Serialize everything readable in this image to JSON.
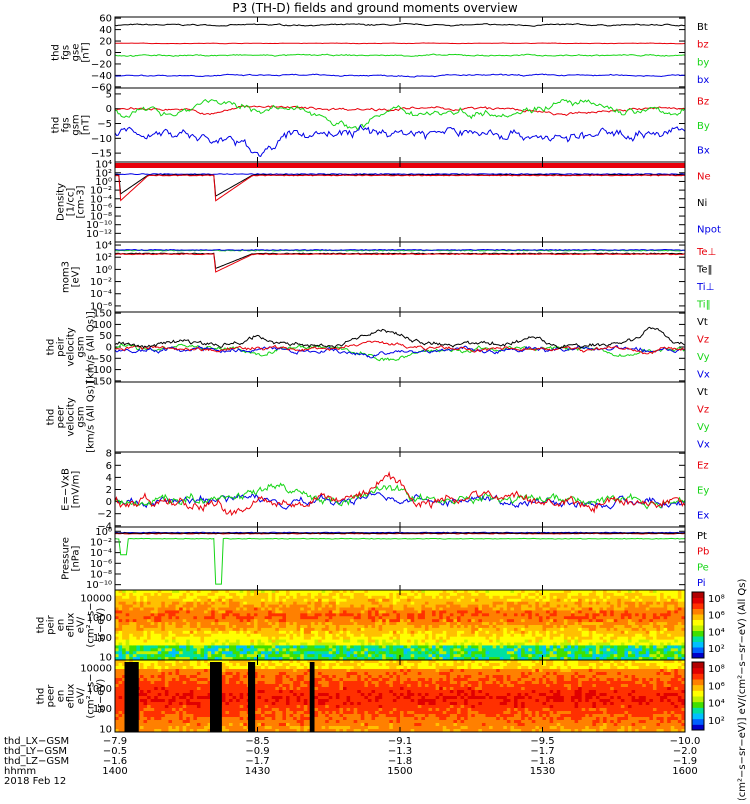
{
  "title": "P3 (TH-D) fields and ground moments overview",
  "colors": {
    "black": "#000000",
    "red": "#e8000b",
    "green": "#16d516",
    "blue": "#0000e6"
  },
  "panels": [
    {
      "id": "p1",
      "ylabel": [
        "thd",
        "fgs",
        "gse",
        "[nT]"
      ],
      "ticks": [
        "60",
        "40",
        "20",
        "0",
        "−20",
        "−40",
        "−60"
      ],
      "tick_values": [
        60,
        40,
        20,
        0,
        -20,
        -40,
        -60
      ],
      "ylim": [
        -62,
        62
      ],
      "legend": [
        {
          "label": "Bt",
          "color": "#000000"
        },
        {
          "label": "bz",
          "color": "#e8000b"
        },
        {
          "label": "by",
          "color": "#16d516"
        },
        {
          "label": "bx",
          "color": "#0000e6"
        }
      ],
      "series": [
        {
          "name": "Bt",
          "color": "#000000",
          "base": 48,
          "noise": 1.5
        },
        {
          "name": "bz",
          "color": "#e8000b",
          "base": 16,
          "noise": 0.5
        },
        {
          "name": "by",
          "color": "#16d516",
          "base": -5,
          "noise": 1.5
        },
        {
          "name": "bx",
          "color": "#0000e6",
          "base": -40,
          "noise": 1.5
        }
      ]
    },
    {
      "id": "p2",
      "ylabel": [
        "thd",
        "fgs",
        "gsm",
        "[nT]"
      ],
      "ticks": [
        "5",
        "0",
        "−5",
        "−10",
        "−15"
      ],
      "tick_values": [
        5,
        0,
        -5,
        -10,
        -15
      ],
      "ylim": [
        -18,
        7
      ],
      "legend": [
        {
          "label": "Bz",
          "color": "#e8000b"
        },
        {
          "label": "By",
          "color": "#16d516"
        },
        {
          "label": "Bx",
          "color": "#0000e6"
        }
      ],
      "series": [
        {
          "name": "Bz",
          "color": "#e8000b",
          "base": 0,
          "noise": 0.6
        },
        {
          "name": "By",
          "color": "#16d516",
          "base": -1,
          "noise": 1.5
        },
        {
          "name": "Bx",
          "color": "#0000e6",
          "base": -8,
          "noise": 2
        }
      ]
    },
    {
      "id": "p3",
      "ylabel": [
        "Density",
        "[1/cc]",
        "[cm-3]"
      ],
      "ticks": [
        "10⁴",
        "10²",
        "10⁰",
        "10⁻²",
        "10⁻⁴",
        "10⁻⁶",
        "10⁻⁸",
        "10⁻¹⁰",
        "10⁻¹²"
      ],
      "tick_values": [
        4,
        2,
        0,
        -2,
        -4,
        -6,
        -8,
        -10,
        -12
      ],
      "ylim": [
        -14,
        4.5
      ],
      "legend": [
        {
          "label": "Ne",
          "color": "#e8000b"
        },
        {
          "label": "Ni",
          "color": "#000000"
        },
        {
          "label": "Npot",
          "color": "#0000e6"
        }
      ]
    },
    {
      "id": "p4",
      "ylabel": [
        "mom3",
        "[eV]"
      ],
      "ticks": [
        "10⁴",
        "10²",
        "10⁰",
        "10⁻²",
        "10⁻⁴",
        "10⁻⁶"
      ],
      "tick_values": [
        4,
        2,
        0,
        -2,
        -4,
        -6
      ],
      "ylim": [
        -7,
        4.5
      ],
      "legend": [
        {
          "label": "Te⊥",
          "color": "#e8000b"
        },
        {
          "label": "Te‖",
          "color": "#000000"
        },
        {
          "label": "Ti⊥",
          "color": "#0000e6"
        },
        {
          "label": "Ti‖",
          "color": "#16d516"
        }
      ]
    },
    {
      "id": "p5",
      "ylabel": [
        "thd",
        "peir",
        "velocity",
        "gsm",
        "[km/s (All Qs)]"
      ],
      "ticks": [
        "150",
        "100",
        "50",
        "0",
        "−50",
        "−100",
        "−150"
      ],
      "tick_values": [
        150,
        100,
        50,
        0,
        -50,
        -100,
        -150
      ],
      "ylim": [
        -155,
        155
      ],
      "legend": [
        {
          "label": "Vt",
          "color": "#000000"
        },
        {
          "label": "Vz",
          "color": "#e8000b"
        },
        {
          "label": "Vy",
          "color": "#16d516"
        },
        {
          "label": "Vx",
          "color": "#0000e6"
        }
      ]
    },
    {
      "id": "p6",
      "ylabel": [
        "thd",
        "peer",
        "velocity",
        "gsm",
        "[km/s (All Qs)]"
      ],
      "ticks": [],
      "tick_values": [],
      "ylim": [
        0,
        1
      ],
      "legend": [
        {
          "label": "Vt",
          "color": "#000000"
        },
        {
          "label": "Vz",
          "color": "#e8000b"
        },
        {
          "label": "Vy",
          "color": "#16d516"
        },
        {
          "label": "Vx",
          "color": "#0000e6"
        }
      ]
    },
    {
      "id": "p7",
      "ylabel": [
        "E=−VxB",
        "[mV/m]"
      ],
      "ticks": [
        "8",
        "6",
        "4",
        "2",
        "0",
        "−2",
        "−4"
      ],
      "tick_values": [
        8,
        6,
        4,
        2,
        0,
        -2,
        -4
      ],
      "ylim": [
        -4.2,
        8.2
      ],
      "legend": [
        {
          "label": "Ez",
          "color": "#e8000b"
        },
        {
          "label": "Ey",
          "color": "#16d516"
        },
        {
          "label": "Ex",
          "color": "#0000e6"
        }
      ]
    },
    {
      "id": "p8",
      "ylabel": [
        "Pressure",
        "[nPa]"
      ],
      "ticks": [
        "10⁰",
        "10⁻²",
        "10⁻⁴",
        "10⁻⁶",
        "10⁻⁸",
        "10⁻¹⁰"
      ],
      "tick_values": [
        0,
        -2,
        -4,
        -6,
        -8,
        -10
      ],
      "ylim": [
        -11,
        0.8
      ],
      "legend": [
        {
          "label": "Pt",
          "color": "#000000"
        },
        {
          "label": "Pb",
          "color": "#e8000b"
        },
        {
          "label": "Pe",
          "color": "#16d516"
        },
        {
          "label": "Pi",
          "color": "#0000e6"
        }
      ]
    },
    {
      "id": "p9",
      "ylabel": [
        "thd",
        "peir",
        "en",
        "eflux",
        "eV/",
        "(cm²−s−",
        "sr−eV)"
      ],
      "ticks": [
        "10000",
        "1000",
        "100",
        "10"
      ],
      "tick_values": [
        4,
        3,
        2,
        1
      ],
      "ylim": [
        0.85,
        4.4
      ]
    },
    {
      "id": "p10",
      "ylabel": [
        "thd",
        "peer",
        "en",
        "eflux",
        "eV/",
        "(cm²−s−",
        "sr−eV)"
      ],
      "ticks": [
        "10000",
        "1000",
        "100",
        "10"
      ],
      "tick_values": [
        4,
        3,
        2,
        1
      ],
      "ylim": [
        0.85,
        4.4
      ]
    }
  ],
  "colorbar": {
    "ticks": [
      "10⁸",
      "10⁶",
      "10⁴",
      "10²"
    ],
    "label": "[eV/(cm²−s−sr−eV)] eV/(cm²−s−sr−eV) (All Qs)"
  },
  "xaxis": {
    "rows": [
      {
        "label": "thd_LX−GSM",
        "values": [
          "−7.9",
          "−8.5",
          "−9.1",
          "−9.5",
          "−10.0"
        ]
      },
      {
        "label": "thd_LY−GSM",
        "values": [
          "−0.5",
          "−0.9",
          "−1.3",
          "−1.7",
          "−2.0"
        ]
      },
      {
        "label": "thd_LZ−GSM",
        "values": [
          "−1.6",
          "−1.7",
          "−1.8",
          "−1.8",
          "−1.9"
        ]
      },
      {
        "label": "hhmm",
        "values": [
          "1400",
          "1430",
          "1500",
          "1530",
          "1600"
        ]
      }
    ],
    "date": "2018 Feb 12",
    "tick_minutes": [
      0,
      30,
      60,
      90,
      120
    ]
  },
  "chart_data": {
    "type": "line",
    "title": "P3 (TH-D) fields and ground moments overview",
    "x_range": [
      "1400",
      "1600"
    ],
    "date": "2018 Feb 12",
    "series": [
      {
        "name": "Bt",
        "approx_value": 48
      },
      {
        "name": "bz",
        "approx_value": 16
      },
      {
        "name": "by",
        "approx_value": -5
      },
      {
        "name": "bx",
        "approx_value": -40
      },
      {
        "name": "Bz",
        "approx_value": 0
      },
      {
        "name": "By",
        "approx_value": -1
      },
      {
        "name": "Bx",
        "approx_value": -8
      },
      {
        "name": "Ne",
        "approx_log_value": 1.5
      },
      {
        "name": "Ni",
        "approx_log_value": 1.5
      },
      {
        "name": "Pt",
        "approx_log_value": -0.3
      },
      {
        "name": "Pe",
        "approx_log_value": -1.2
      }
    ]
  }
}
